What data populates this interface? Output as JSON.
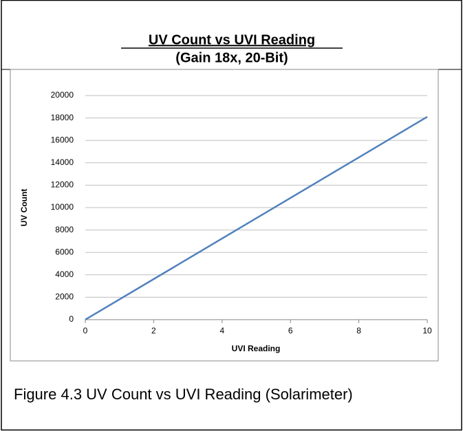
{
  "chart_data": {
    "type": "line",
    "title": "UV Count vs UVI Reading",
    "subtitle": "(Gain 18x, 20-Bit)",
    "x_label": "UVI Reading",
    "y_label": "UV Count",
    "x": [
      0,
      10
    ],
    "values": [
      0,
      18100
    ],
    "color": "#4f81bd",
    "xlim": [
      0,
      10
    ],
    "xticks": [
      0,
      2,
      4,
      6,
      8,
      10
    ],
    "ylim": [
      0,
      20000
    ],
    "yticks": [
      0,
      2000,
      4000,
      6000,
      8000,
      10000,
      12000,
      14000,
      16000,
      18000,
      20000
    ],
    "grid": true
  },
  "caption": "Figure 4.3 UV Count vs UVI Reading (Solarimeter)"
}
